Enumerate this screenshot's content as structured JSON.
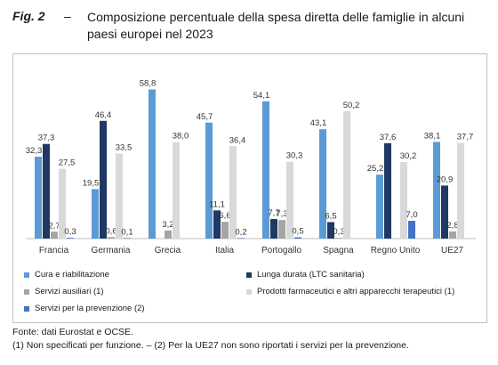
{
  "figure": {
    "label": "Fig. 2",
    "dash": "–",
    "title": "Composizione percentuale della spesa diretta delle famiglie in alcuni paesi europei nel 2023"
  },
  "chart_data": {
    "type": "bar",
    "categories": [
      "Francia",
      "Germania",
      "Grecia",
      "Italia",
      "Portogallo",
      "Spagna",
      "Regno Unito",
      "UE27"
    ],
    "ylim": [
      0,
      60
    ],
    "grid": false,
    "legend_position": "bottom",
    "series": [
      {
        "name": "Cura e riabilitazione",
        "color": "#5b9bd5",
        "values": [
          32.3,
          19.5,
          58.8,
          45.7,
          54.1,
          43.1,
          25.2,
          38.1
        ]
      },
      {
        "name": "Lunga durata (LTC sanitaria)",
        "color": "#1f3864",
        "values": [
          37.3,
          46.4,
          null,
          11.1,
          7.7,
          6.5,
          37.6,
          20.9
        ]
      },
      {
        "name": "Servizi ausiliari (1)",
        "color": "#a5a5a5",
        "values": [
          2.7,
          0.6,
          3.2,
          6.6,
          7.3,
          0.3,
          null,
          2.8
        ]
      },
      {
        "name": "Prodotti farmaceutici e altri apparecchi terapeutici (1)",
        "color": "#d9d9d9",
        "values": [
          27.5,
          33.5,
          38.0,
          36.4,
          30.3,
          50.2,
          30.2,
          37.7
        ]
      },
      {
        "name": "Servizi per la prevenzione (2)",
        "color": "#4472c4",
        "values": [
          0.3,
          0.1,
          null,
          0.2,
          0.5,
          null,
          7.0,
          null
        ]
      }
    ],
    "value_labels": [
      [
        "32,3",
        "19,5",
        "58,8",
        "45,7",
        "54,1",
        "43,1",
        "25,2",
        "38,1"
      ],
      [
        "37,3",
        "46,4",
        "",
        "11,1",
        "7,7",
        "6,5",
        "37,6",
        "20,9"
      ],
      [
        "2,7",
        "0,6",
        "3,2",
        "6,6",
        "7,3",
        "0,3",
        "",
        "2,8"
      ],
      [
        "27,5",
        "33,5",
        "38,0",
        "36,4",
        "30,3",
        "50,2",
        "30,2",
        "37,7"
      ],
      [
        "0,3",
        "0,1",
        "",
        "0,2",
        "0,5",
        "",
        "7,0",
        ""
      ]
    ]
  },
  "notes": {
    "source": "Fonte: dati Eurostat e OCSE.",
    "footnote": "(1) Non specificati per funzione. – (2) Per la UE27 non sono riportati i servizi per la prevenzione."
  }
}
